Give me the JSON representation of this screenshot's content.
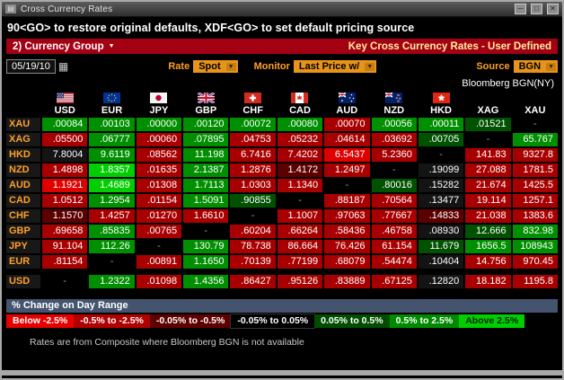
{
  "window": {
    "title": "Cross Currency Rates"
  },
  "icons": {
    "window_menu": "▤",
    "minimize": "─",
    "maximize": "□",
    "close": "✕",
    "calendar": "▦",
    "dropdown_arrow": "▼"
  },
  "toolbar_hint": "90<GO> to restore original defaults, XDF<GO> to set default pricing source",
  "menu_bar": {
    "group_button": "2) Currency Group",
    "title": "Key Cross Currency Rates - User Defined"
  },
  "controls": {
    "date": "05/19/10",
    "rate_label": "Rate",
    "rate_value": "Spot",
    "monitor_label": "Monitor",
    "monitor_value": "Last Price w/",
    "source_label": "Source",
    "source_value": "BGN"
  },
  "source_note": "Bloomberg BGN(NY)",
  "matrix": {
    "columns": [
      "USD",
      "EUR",
      "JPY",
      "GBP",
      "CHF",
      "CAD",
      "AUD",
      "NZD",
      "HKD",
      "XAG",
      "XAU"
    ],
    "flags": [
      "us",
      "eu",
      "jp",
      "gb",
      "ch",
      "ca",
      "au",
      "nz",
      "hk",
      null,
      null
    ],
    "palette": {
      "r3": "#df0000",
      "r2": "#a80000",
      "r1": "#5c0000",
      "k": "#141414",
      "g1": "#005200",
      "g2": "#008f00",
      "g3": "#00ce00",
      "d": "#000000"
    },
    "rows": [
      {
        "label": "XAU",
        "values": [
          ".00084",
          ".00103",
          ".00000",
          ".00120",
          ".00072",
          ".00080",
          ".00070",
          ".00056",
          ".00011",
          ".01521",
          "-"
        ],
        "colors": [
          "g2",
          "g2",
          "g2",
          "g2",
          "g2",
          "g2",
          "r2",
          "g2",
          "g2",
          "g1",
          "d"
        ]
      },
      {
        "label": "XAG",
        "values": [
          ".05500",
          ".06777",
          ".00060",
          ".07895",
          ".04753",
          ".05232",
          ".04614",
          ".03692",
          ".00705",
          "-",
          "65.767"
        ],
        "colors": [
          "r2",
          "g2",
          "r2",
          "g2",
          "r2",
          "r2",
          "r2",
          "r2",
          "g1",
          "d",
          "g2"
        ]
      },
      {
        "label": "HKD",
        "values": [
          "7.8004",
          "9.6119",
          ".08562",
          "11.198",
          "6.7416",
          "7.4202",
          "6.5437",
          "5.2360",
          "-",
          "141.83",
          "9327.8"
        ],
        "colors": [
          "k",
          "g2",
          "r2",
          "g2",
          "r2",
          "r2",
          "r3",
          "r2",
          "d",
          "r2",
          "r2"
        ]
      },
      {
        "label": "NZD",
        "values": [
          "1.4898",
          "1.8357",
          ".01635",
          "2.1387",
          "1.2876",
          "1.4172",
          "1.2497",
          "-",
          ".19099",
          "27.088",
          "1781.5"
        ],
        "colors": [
          "r2",
          "g3",
          "r2",
          "g2",
          "r2",
          "r1",
          "r2",
          "d",
          "k",
          "r2",
          "r2"
        ]
      },
      {
        "label": "AUD",
        "values": [
          "1.1921",
          "1.4689",
          ".01308",
          "1.7113",
          "1.0303",
          "1.1340",
          "-",
          ".80016",
          ".15282",
          "21.674",
          "1425.5"
        ],
        "colors": [
          "r3",
          "g3",
          "r2",
          "g2",
          "r2",
          "r2",
          "d",
          "g1",
          "k",
          "r2",
          "r2"
        ]
      },
      {
        "label": "CAD",
        "values": [
          "1.0512",
          "1.2954",
          ".01154",
          "1.5091",
          ".90855",
          "-",
          ".88187",
          ".70564",
          ".13477",
          "19.114",
          "1257.1"
        ],
        "colors": [
          "r2",
          "g2",
          "r2",
          "g2",
          "g1",
          "d",
          "r2",
          "r2",
          "k",
          "r2",
          "r2"
        ]
      },
      {
        "label": "CHF",
        "values": [
          "1.1570",
          "1.4257",
          ".01270",
          "1.6610",
          "-",
          "1.1007",
          ".97063",
          ".77667",
          ".14833",
          "21.038",
          "1383.6"
        ],
        "colors": [
          "r1",
          "r2",
          "r2",
          "r2",
          "d",
          "r2",
          "r2",
          "r2",
          "r1",
          "r2",
          "r2"
        ]
      },
      {
        "label": "GBP",
        "values": [
          ".69658",
          ".85835",
          ".00765",
          "-",
          ".60204",
          ".66264",
          ".58436",
          ".46758",
          ".08930",
          "12.666",
          "832.98"
        ],
        "colors": [
          "r2",
          "g2",
          "r2",
          "d",
          "r2",
          "r2",
          "r2",
          "r2",
          "k",
          "g1",
          "g2"
        ]
      },
      {
        "label": "JPY",
        "values": [
          "91.104",
          "112.26",
          "-",
          "130.79",
          "78.738",
          "86.664",
          "76.426",
          "61.154",
          "11.679",
          "1656.5",
          "108943"
        ],
        "colors": [
          "r2",
          "g2",
          "d",
          "g2",
          "r2",
          "r2",
          "r2",
          "r2",
          "g1",
          "g2",
          "g2"
        ]
      },
      {
        "label": "EUR",
        "values": [
          ".81154",
          "-",
          ".00891",
          "1.1650",
          ".70139",
          ".77199",
          ".68079",
          ".54474",
          ".10404",
          "14.756",
          "970.45"
        ],
        "colors": [
          "r2",
          "d",
          "r2",
          "g2",
          "r2",
          "r2",
          "r2",
          "r2",
          "k",
          "r2",
          "r2"
        ]
      },
      {
        "label": "USD",
        "values": [
          "-",
          "1.2322",
          ".01098",
          "1.4356",
          ".86427",
          ".95126",
          ".83889",
          ".67125",
          ".12820",
          "18.182",
          "1195.8"
        ],
        "colors": [
          "d",
          "g2",
          "r2",
          "g2",
          "r2",
          "r2",
          "r2",
          "r2",
          "k",
          "r2",
          "r2"
        ],
        "separator_before": true
      }
    ]
  },
  "legend": {
    "title": "% Change on Day Range",
    "buckets": [
      {
        "label": "Below -2.5%",
        "color": "#e60000",
        "text_color": "#ffffff"
      },
      {
        "label": "-0.5% to -2.5%",
        "color": "#b00000",
        "text_color": "#ffffff"
      },
      {
        "label": "-0.05% to -0.5%",
        "color": "#5e0000",
        "text_color": "#ffffff"
      },
      {
        "label": "-0.05% to 0.05%",
        "color": "#000000",
        "text_color": "#ffffff"
      },
      {
        "label": "0.05% to 0.5%",
        "color": "#004d00",
        "text_color": "#ffffff"
      },
      {
        "label": "0.5% to 2.5%",
        "color": "#008a00",
        "text_color": "#ffffff"
      },
      {
        "label": "Above 2.5%",
        "color": "#00ce00",
        "text_color": "#002200"
      }
    ]
  },
  "footer_note": "Rates are from Composite where Bloomberg BGN is not available"
}
